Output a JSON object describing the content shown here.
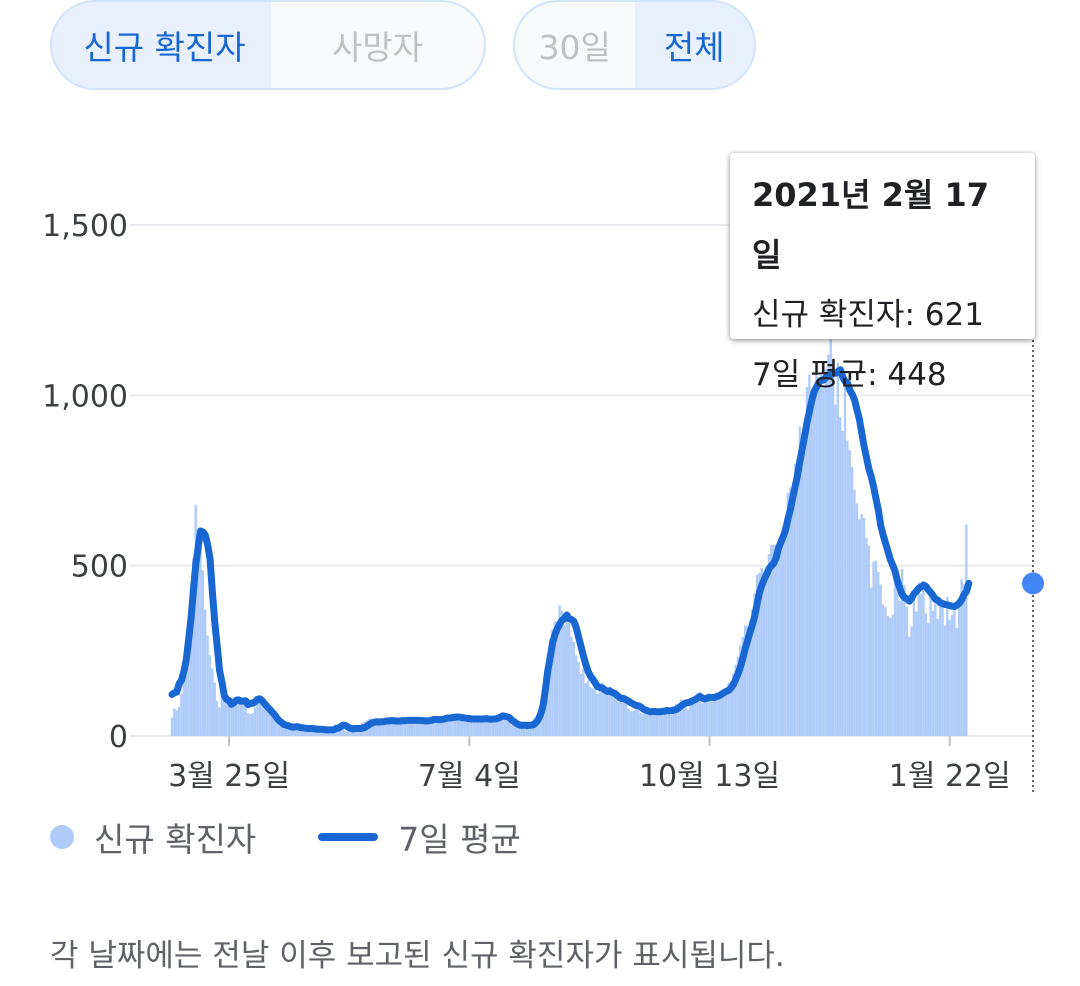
{
  "metric_toggle": {
    "options": [
      "신규 확진자",
      "사망자"
    ],
    "selected": 0
  },
  "range_toggle": {
    "options": [
      "30일",
      "전체"
    ],
    "selected": 1
  },
  "tooltip": {
    "date": "2021년 2월 17일",
    "new_cases_line": "신규 확진자: 621",
    "avg_line": "7일 평균: 448"
  },
  "legend": {
    "bars_label": "신규 확진자",
    "line_label": "7일 평균"
  },
  "footnote": "각 날짜에는 전날 이후 보고된 신규 확진자가 표시됩니다.",
  "colors": {
    "bar": "#aecbfa",
    "line": "#1967d2",
    "point": "#4285f4",
    "grid": "#e8eaed"
  },
  "chart_data": {
    "type": "bar",
    "title": "",
    "xlabel": "",
    "ylabel": "",
    "ylim": [
      0,
      1500
    ],
    "yticks": [
      "0",
      "500",
      "1,000",
      "1,500"
    ],
    "xticks": [
      {
        "label": "3월 25일",
        "day": 24
      },
      {
        "label": "7월 4일",
        "day": 125
      },
      {
        "label": "10월 13일",
        "day": 226
      },
      {
        "label": "1월 22일",
        "day": 327
      }
    ],
    "x_range": [
      0,
      362
    ],
    "series": [
      {
        "name": "신규 확진자",
        "kind": "bar",
        "values": [
          54,
          81,
          76,
          86,
          124,
          168,
          188,
          279,
          448,
          521,
          679,
          592,
          551,
          487,
          371,
          295,
          237,
          198,
          157,
          103,
          84,
          121,
          107,
          112,
          89,
          93,
          110,
          98,
          106,
          91,
          110,
          105,
          67,
          65,
          67,
          84,
          101,
          102,
          97,
          78,
          89,
          76,
          68,
          60,
          46,
          41,
          39,
          37,
          34,
          33,
          21,
          29,
          30,
          24,
          24,
          25,
          19,
          23,
          20,
          24,
          20,
          17,
          16,
          15,
          14,
          15,
          18,
          26,
          25,
          34,
          30,
          30,
          28,
          14,
          23,
          20,
          23,
          21,
          22,
          20,
          38,
          42,
          46,
          51,
          52,
          41,
          35,
          42,
          40,
          42,
          46,
          50,
          50,
          48,
          45,
          41,
          42,
          46,
          46,
          50,
          52,
          50,
          44,
          45,
          48,
          49,
          49,
          43,
          36,
          56,
          50,
          56,
          46,
          46,
          48,
          54,
          55,
          60,
          56,
          64,
          60,
          44,
          48,
          61,
          56,
          63,
          53,
          50,
          48,
          48,
          57,
          54,
          51,
          45,
          49,
          45,
          51,
          54,
          61,
          64,
          55,
          45,
          43,
          32,
          29,
          27,
          34,
          26,
          29,
          31,
          35,
          32,
          34,
          55,
          59,
          85,
          134,
          190,
          243,
          285,
          314,
          336,
          337,
          384,
          368,
          325,
          339,
          332,
          292,
          276,
          236,
          217,
          182,
          199,
          155,
          163,
          143,
          140,
          153,
          123,
          155,
          157,
          136,
          131,
          137,
          120,
          125,
          105,
          99,
          103,
          108,
          103,
          81,
          73,
          74,
          89,
          86,
          69,
          64,
          80,
          64,
          71,
          71,
          73,
          74,
          72,
          69,
          73,
          85,
          70,
          62,
          81,
          94,
          94,
          106,
          102,
          93,
          76,
          111,
          103,
          105,
          126,
          130,
          96,
          106,
          124,
          123,
          101,
          115,
          117,
          128,
          134,
          137,
          140,
          156,
          160,
          183,
          209,
          232,
          266,
          291,
          325,
          322,
          338,
          372,
          419,
          473,
          479,
          494,
          468,
          469,
          534,
          560,
          562,
          561,
          523,
          570,
          616,
          620,
          714,
          729,
          722,
          800,
          813,
          909,
          890,
          870,
          1025,
          1062,
          1014,
          1014,
          1079,
          1054,
          1060,
          1023,
          1078,
          1119,
          1164,
          1055,
          973,
          1096,
          936,
          895,
          1024,
          867,
          839,
          790,
          724,
          683,
          636,
          651,
          640,
          582,
          559,
          436,
          512,
          515,
          482,
          444,
          386,
          379,
          352,
          347,
          355,
          449,
          438,
          397,
          490,
          443,
          380,
          292,
          322,
          419,
          365,
          450,
          418,
          429,
          360,
          331,
          409,
          367,
          392,
          344,
          399,
          394,
          325,
          408,
          341,
          356,
          371,
          317,
          388,
          460,
          446,
          621
        ]
      },
      {
        "name": "7일 평균",
        "kind": "line",
        "values": [
          122,
          127,
          129,
          153,
          164,
          190,
          224,
          283,
          346,
          426,
          504,
          553,
          602,
          599,
          590,
          561,
          520,
          421,
          333,
          265,
          192,
          158,
          118,
          107,
          104,
          93,
          98,
          105,
          106,
          102,
          103,
          103,
          92,
          96,
          96,
          101,
          108,
          109,
          103,
          94,
          86,
          79,
          71,
          64,
          54,
          45,
          40,
          34,
          32,
          30,
          27,
          26,
          27,
          27,
          25,
          24,
          23,
          22,
          22,
          22,
          21,
          20,
          20,
          20,
          19,
          18,
          18,
          18,
          18,
          22,
          23,
          28,
          32,
          31,
          26,
          23,
          21,
          22,
          22,
          22,
          23,
          25,
          29,
          34,
          38,
          40,
          42,
          41,
          42,
          42,
          44,
          44,
          45,
          45,
          44,
          44,
          44,
          45,
          45,
          46,
          46,
          46,
          46,
          46,
          46,
          45,
          45,
          44,
          45,
          46,
          48,
          49,
          48,
          48,
          49,
          51,
          53,
          53,
          54,
          55,
          56,
          55,
          54,
          53,
          52,
          51,
          50,
          50,
          50,
          50,
          50,
          50,
          51,
          50,
          49,
          50,
          50,
          52,
          55,
          59,
          58,
          56,
          53,
          46,
          41,
          36,
          33,
          31,
          32,
          31,
          31,
          32,
          33,
          40,
          48,
          64,
          89,
          137,
          192,
          230,
          273,
          298,
          315,
          328,
          340,
          345,
          355,
          344,
          342,
          336,
          317,
          289,
          262,
          234,
          210,
          189,
          175,
          166,
          155,
          145,
          142,
          141,
          135,
          131,
          133,
          128,
          126,
          120,
          114,
          110,
          110,
          106,
          102,
          97,
          94,
          90,
          89,
          86,
          80,
          76,
          74,
          71,
          72,
          72,
          71,
          71,
          72,
          73,
          75,
          74,
          74,
          76,
          78,
          82,
          88,
          93,
          97,
          98,
          100,
          104,
          107,
          112,
          116,
          111,
          109,
          111,
          114,
          113,
          113,
          116,
          118,
          122,
          127,
          131,
          134,
          141,
          151,
          166,
          183,
          203,
          228,
          256,
          280,
          304,
          326,
          352,
          388,
          421,
          443,
          460,
          475,
          491,
          500,
          507,
          523,
          551,
          569,
          586,
          606,
          638,
          665,
          700,
          733,
          765,
          807,
          844,
          881,
          921,
          953,
          985,
          1011,
          1025,
          1038,
          1044,
          1045,
          1053,
          1060,
          1060,
          1064,
          1065,
          1069,
          1075,
          1054,
          1041,
          1036,
          1015,
          1003,
          986,
          957,
          930,
          890,
          850,
          817,
          784,
          761,
          731,
          696,
          663,
          617,
          590,
          566,
          543,
          518,
          502,
          484,
          455,
          434,
          415,
          406,
          403,
          396,
          405,
          418,
          425,
          434,
          438,
          443,
          439,
          429,
          421,
          412,
          401,
          399,
          391,
          389,
          386,
          385,
          383,
          381,
          380,
          384,
          390,
          400,
          415,
          424,
          448
        ]
      }
    ],
    "highlight": {
      "index": 362,
      "value": 448
    }
  }
}
